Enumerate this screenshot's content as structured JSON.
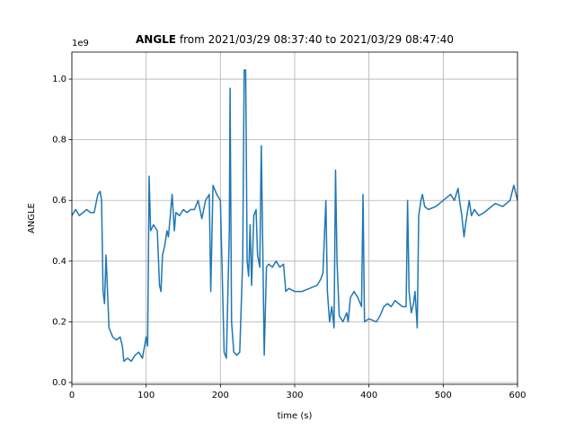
{
  "chart_data": {
    "type": "line",
    "title_bold": "ANGLE",
    "title": "from 2021/03/29 08:37:40 to 2021/03/29 08:47:40",
    "offset_label": "1e9",
    "xlabel": "time (s)",
    "ylabel": "ANGLE",
    "xlim": [
      0,
      600
    ],
    "ylim": [
      -0.006,
      1.089
    ],
    "xticks": [
      0,
      100,
      200,
      300,
      400,
      500,
      600
    ],
    "yticks": [
      {
        "value": 0,
        "label": "0.0"
      },
      0.2,
      0.4,
      0.6,
      0.8,
      {
        "value": 1,
        "label": "1.0"
      }
    ],
    "grid": true,
    "x": [
      0,
      5,
      10,
      15,
      20,
      25,
      30,
      35,
      38,
      40,
      42,
      44,
      46,
      48,
      50,
      55,
      60,
      65,
      68,
      70,
      75,
      80,
      85,
      90,
      95,
      100,
      102,
      104,
      106,
      110,
      115,
      118,
      120,
      122,
      125,
      128,
      130,
      135,
      138,
      140,
      145,
      150,
      155,
      160,
      165,
      170,
      175,
      180,
      185,
      187,
      190,
      195,
      200,
      205,
      208,
      212,
      213,
      215,
      218,
      222,
      226,
      230,
      232,
      234,
      236,
      238,
      240,
      242,
      245,
      248,
      250,
      253,
      255,
      257,
      259,
      262,
      265,
      270,
      275,
      280,
      285,
      288,
      292,
      300,
      310,
      320,
      330,
      335,
      338,
      342,
      344,
      347,
      350,
      353,
      355,
      357,
      360,
      365,
      370,
      372,
      375,
      380,
      385,
      390,
      392,
      394,
      400,
      410,
      415,
      420,
      425,
      430,
      435,
      440,
      445,
      450,
      452,
      454,
      457,
      460,
      462,
      465,
      467,
      470,
      472,
      475,
      480,
      490,
      500,
      510,
      515,
      520,
      522,
      525,
      528,
      530,
      535,
      538,
      542,
      548,
      555,
      560,
      565,
      570,
      580,
      590,
      595,
      600
    ],
    "series": [
      {
        "name": "ANGLE",
        "color": "#1f77b4",
        "values": [
          0.55,
          0.57,
          0.55,
          0.56,
          0.57,
          0.56,
          0.56,
          0.62,
          0.63,
          0.6,
          0.3,
          0.26,
          0.42,
          0.3,
          0.18,
          0.15,
          0.14,
          0.15,
          0.12,
          0.07,
          0.08,
          0.07,
          0.09,
          0.1,
          0.08,
          0.15,
          0.12,
          0.68,
          0.5,
          0.52,
          0.5,
          0.32,
          0.3,
          0.42,
          0.45,
          0.5,
          0.48,
          0.62,
          0.5,
          0.56,
          0.55,
          0.57,
          0.56,
          0.57,
          0.57,
          0.6,
          0.54,
          0.6,
          0.62,
          0.3,
          0.65,
          0.62,
          0.6,
          0.1,
          0.08,
          0.5,
          0.97,
          0.2,
          0.1,
          0.09,
          0.1,
          0.4,
          1.03,
          1.03,
          0.4,
          0.35,
          0.52,
          0.32,
          0.55,
          0.57,
          0.42,
          0.38,
          0.78,
          0.45,
          0.09,
          0.38,
          0.39,
          0.38,
          0.4,
          0.38,
          0.39,
          0.3,
          0.31,
          0.3,
          0.3,
          0.31,
          0.32,
          0.34,
          0.36,
          0.6,
          0.3,
          0.2,
          0.25,
          0.18,
          0.7,
          0.4,
          0.22,
          0.2,
          0.23,
          0.2,
          0.28,
          0.3,
          0.28,
          0.25,
          0.62,
          0.2,
          0.21,
          0.2,
          0.22,
          0.25,
          0.26,
          0.25,
          0.27,
          0.26,
          0.25,
          0.25,
          0.6,
          0.3,
          0.23,
          0.26,
          0.3,
          0.18,
          0.55,
          0.6,
          0.62,
          0.58,
          0.57,
          0.58,
          0.6,
          0.62,
          0.6,
          0.64,
          0.6,
          0.55,
          0.48,
          0.52,
          0.6,
          0.55,
          0.57,
          0.55,
          0.56,
          0.57,
          0.58,
          0.59,
          0.58,
          0.6,
          0.65,
          0.6
        ]
      }
    ]
  }
}
